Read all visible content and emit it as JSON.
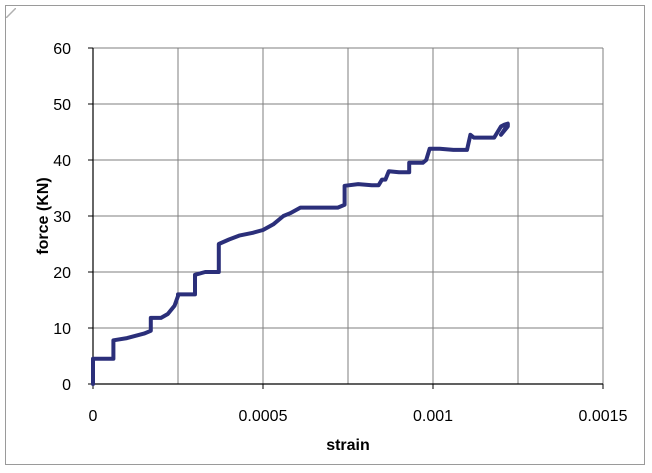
{
  "chart_data": {
    "type": "line",
    "title": "",
    "xlabel": "strain",
    "ylabel": "force (KN)",
    "xlim": [
      0,
      0.0015
    ],
    "ylim": [
      0,
      60
    ],
    "x_ticks": [
      0,
      0.0005,
      0.001,
      0.0015
    ],
    "x_tick_labels": [
      "0",
      "0.0005",
      "0.001",
      "0.0015"
    ],
    "y_ticks": [
      0,
      10,
      20,
      30,
      40,
      50,
      60
    ],
    "y_tick_labels": [
      "0",
      "10",
      "20",
      "30",
      "40",
      "50",
      "60"
    ],
    "grid": true,
    "legend": "none",
    "series": [
      {
        "color": "#2b2f7a",
        "x": [
          0,
          0,
          6e-05,
          6e-05,
          0.0001,
          0.00015,
          0.00017,
          0.00017,
          0.0002,
          0.00022,
          0.00024,
          0.00025,
          0.00025,
          0.00028,
          0.0003,
          0.0003,
          0.00033,
          0.00036,
          0.00037,
          0.00037,
          0.0004,
          0.00043,
          0.00047,
          0.0005,
          0.00053,
          0.00056,
          0.00058,
          0.00061,
          0.00064,
          0.00068,
          0.00072,
          0.00074,
          0.00074,
          0.00078,
          0.00082,
          0.00084,
          0.00085,
          0.00086,
          0.00087,
          0.0009,
          0.00093,
          0.00093,
          0.00097,
          0.00098,
          0.00099,
          0.00102,
          0.00106,
          0.0011,
          0.00111,
          0.00112,
          0.00115,
          0.00118,
          0.00119,
          0.0012,
          0.00121,
          0.00122,
          0.00122,
          0.0012,
          0.00122
        ],
        "y": [
          0,
          4.5,
          4.5,
          7.8,
          8.2,
          9,
          9.5,
          11.8,
          11.8,
          12.5,
          14,
          15.7,
          16,
          16,
          16,
          19.5,
          20,
          20,
          20,
          25,
          25.8,
          26.5,
          27,
          27.5,
          28.5,
          30,
          30.5,
          31.5,
          31.5,
          31.5,
          31.5,
          32,
          35.4,
          35.7,
          35.5,
          35.5,
          36.5,
          36.5,
          38,
          37.8,
          37.8,
          39.5,
          39.5,
          40,
          42,
          42,
          41.8,
          41.8,
          44.5,
          44,
          44,
          44,
          45,
          46,
          46.3,
          46.5,
          46,
          44.5,
          46.3
        ]
      }
    ]
  }
}
